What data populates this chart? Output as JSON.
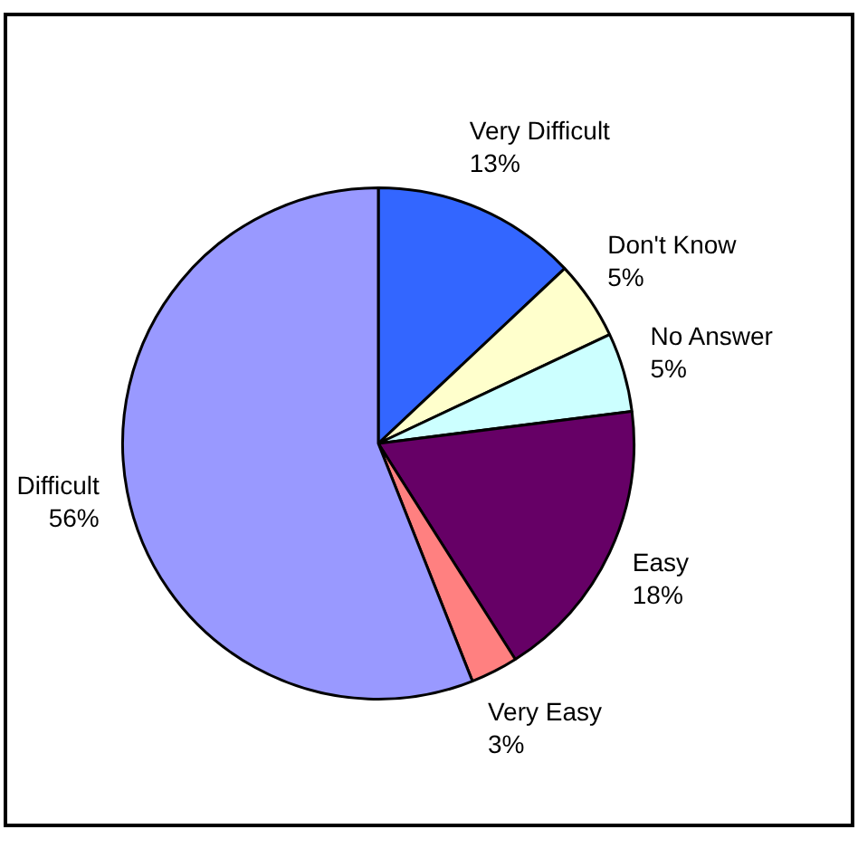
{
  "chart_data": {
    "type": "pie",
    "categories": [
      "Very Difficult",
      "Don't Know",
      "No Answer",
      "Easy",
      "Very Easy",
      "Difficult"
    ],
    "values": [
      13,
      5,
      5,
      18,
      3,
      56
    ],
    "colors": [
      "#3366ff",
      "#ffffcc",
      "#ccffff",
      "#660066",
      "#ff8080",
      "#9999ff"
    ],
    "value_labels": [
      "13%",
      "5%",
      "5%",
      "18%",
      "3%",
      "56%"
    ],
    "legend": false
  }
}
